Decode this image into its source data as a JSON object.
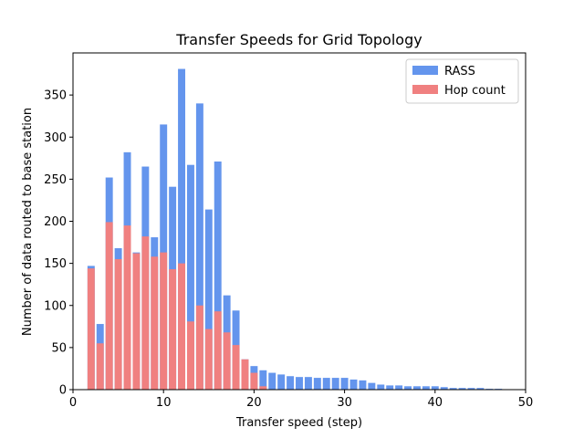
{
  "chart_data": {
    "type": "bar",
    "title": "Transfer Speeds for Grid Topology",
    "xlabel": "Transfer speed (step)",
    "ylabel": "Number of data routed to base station",
    "xlim": [
      0,
      50
    ],
    "ylim": [
      0,
      400
    ],
    "xticks": [
      0,
      10,
      20,
      30,
      40,
      50
    ],
    "yticks": [
      0,
      50,
      100,
      150,
      200,
      250,
      300,
      350
    ],
    "legend_position": "top-right",
    "grid": false,
    "overlay": true,
    "x": [
      2,
      3,
      4,
      5,
      6,
      7,
      8,
      9,
      10,
      11,
      12,
      13,
      14,
      15,
      16,
      17,
      18,
      19,
      20,
      21,
      22,
      23,
      24,
      25,
      26,
      27,
      28,
      29,
      30,
      31,
      32,
      33,
      34,
      35,
      36,
      37,
      38,
      39,
      40,
      41,
      42,
      43,
      44,
      45,
      46,
      47
    ],
    "series": [
      {
        "name": "RASS",
        "color": "#6495ED",
        "values": [
          147,
          78,
          252,
          168,
          282,
          163,
          265,
          181,
          315,
          241,
          381,
          267,
          340,
          214,
          271,
          112,
          94,
          36,
          28,
          23,
          20,
          18,
          16,
          15,
          15,
          14,
          14,
          14,
          14,
          12,
          11,
          8,
          6,
          5,
          5,
          4,
          4,
          4,
          4,
          3,
          2,
          2,
          2,
          2,
          1,
          1
        ]
      },
      {
        "name": "Hop count",
        "color": "#F08080",
        "values": [
          144,
          55,
          199,
          155,
          195,
          162,
          182,
          158,
          163,
          143,
          150,
          81,
          100,
          72,
          93,
          68,
          53,
          36,
          20,
          4,
          0,
          0,
          0,
          0,
          0,
          0,
          0,
          0,
          0,
          0,
          0,
          0,
          0,
          0,
          0,
          0,
          0,
          0,
          0,
          0,
          0,
          0,
          0,
          0,
          0,
          0
        ]
      }
    ]
  }
}
